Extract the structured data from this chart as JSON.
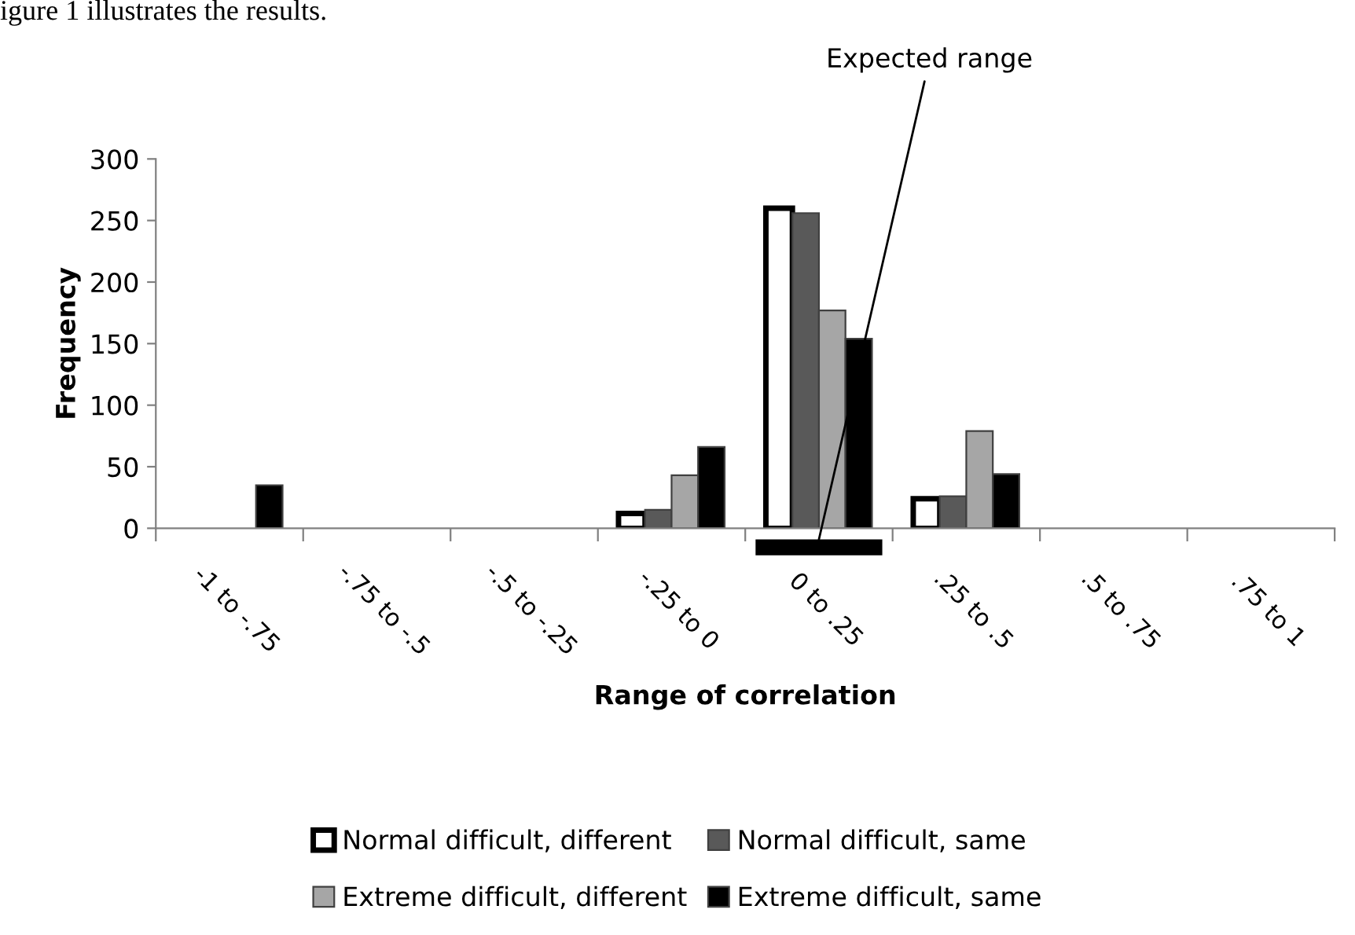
{
  "chart_data": {
    "type": "bar",
    "xlabel": "Range of correlation",
    "ylabel": "Frequency",
    "categories": [
      "-1 to -.75",
      "-.75 to -.5",
      "-.5 to -.25",
      "-.25 to 0",
      "0 to .25",
      ".25 to .5",
      ".5 to .75",
      ".75 to 1"
    ],
    "series": [
      {
        "name": "Normal difficult, different",
        "color": "#ffffff",
        "values": [
          0,
          0,
          0,
          12,
          260,
          24,
          0,
          0
        ]
      },
      {
        "name": "Normal difficult, same",
        "color": "#595959",
        "values": [
          0,
          0,
          0,
          15,
          256,
          26,
          0,
          0
        ]
      },
      {
        "name": "Extreme difficult, different",
        "color": "#a6a6a6",
        "values": [
          0,
          0,
          0,
          43,
          177,
          79,
          0,
          0
        ]
      },
      {
        "name": "Extreme difficult, same",
        "color": "#000000",
        "values": [
          35,
          0,
          0,
          66,
          154,
          44,
          0,
          0
        ]
      }
    ],
    "ylim": [
      0,
      300
    ],
    "yticks": [
      0,
      50,
      100,
      150,
      200,
      250,
      300
    ],
    "grid": false,
    "legend": "bottom",
    "annotations": [
      "igure 1 illustrates the results.",
      "Expected range"
    ]
  }
}
